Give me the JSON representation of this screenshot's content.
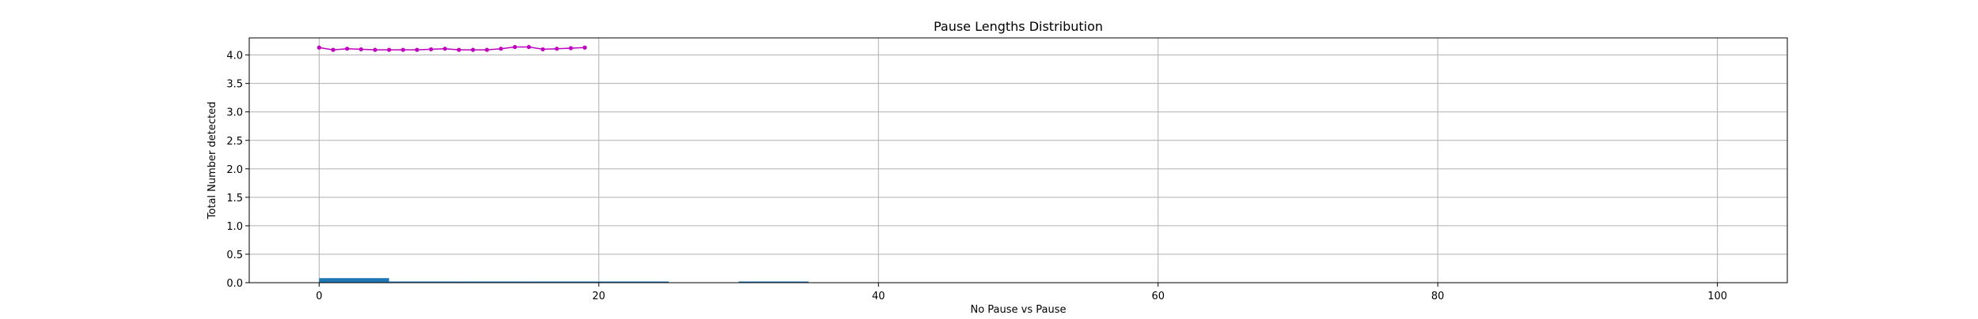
{
  "chart_data": {
    "type": "line",
    "title": "Pause Lengths Distribution",
    "xlabel": "No Pause vs Pause",
    "ylabel": "Total Number detected",
    "xlim": [
      -5,
      105
    ],
    "ylim": [
      0,
      4.3
    ],
    "x_ticks": [
      0,
      20,
      40,
      60,
      80,
      100
    ],
    "y_ticks": [
      0.0,
      0.5,
      1.0,
      1.5,
      2.0,
      2.5,
      3.0,
      3.5,
      4.0
    ],
    "x_tick_labels": [
      "0",
      "20",
      "40",
      "60",
      "80",
      "100"
    ],
    "y_tick_labels": [
      "0.0",
      "0.5",
      "1.0",
      "1.5",
      "2.0",
      "2.5",
      "3.0",
      "3.5",
      "4.0"
    ],
    "grid": true,
    "legend": "none",
    "bars": {
      "color": "#1f77b4",
      "bins": [
        {
          "x0": 0,
          "x1": 5,
          "value": 0.08
        },
        {
          "x0": 5,
          "x1": 10,
          "value": 0.02
        },
        {
          "x0": 10,
          "x1": 15,
          "value": 0.01
        },
        {
          "x0": 15,
          "x1": 20,
          "value": 0.005
        },
        {
          "x0": 20,
          "x1": 25,
          "value": 0.005
        },
        {
          "x0": 30,
          "x1": 35,
          "value": 0.005
        }
      ]
    },
    "series": [
      {
        "color": "#bf00bf",
        "x": [
          0,
          1,
          2,
          3,
          4,
          5,
          6,
          7,
          8,
          9,
          10,
          11,
          12,
          13,
          14,
          15,
          16,
          17,
          18,
          19
        ],
        "values": [
          4.13,
          4.09,
          4.11,
          4.1,
          4.09,
          4.09,
          4.09,
          4.09,
          4.1,
          4.11,
          4.09,
          4.09,
          4.09,
          4.11,
          4.14,
          4.14,
          4.1,
          4.11,
          4.12,
          4.13
        ]
      }
    ]
  }
}
